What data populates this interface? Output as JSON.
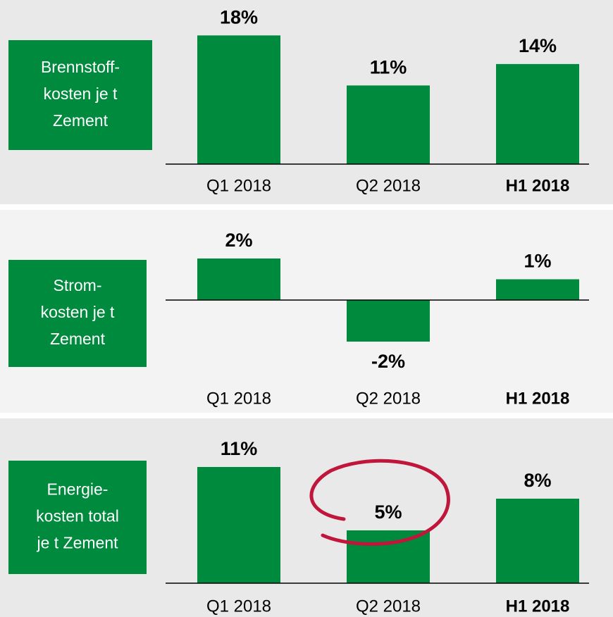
{
  "chart_data": [
    {
      "type": "bar",
      "title": [
        "Brennstoff-",
        "kosten je t",
        "Zement"
      ],
      "categories": [
        "Q1 2018",
        "Q2 2018",
        "H1 2018"
      ],
      "values": [
        18,
        11,
        14
      ],
      "value_labels": [
        "18%",
        "11%",
        "14%"
      ],
      "color": "#008a3e"
    },
    {
      "type": "bar",
      "title": [
        "Strom-",
        "kosten je t",
        "Zement"
      ],
      "categories": [
        "Q1 2018",
        "Q2 2018",
        "H1 2018"
      ],
      "values": [
        2,
        -2,
        1
      ],
      "value_labels": [
        "2%",
        "-2%",
        "1%"
      ],
      "color": "#008a3e"
    },
    {
      "type": "bar",
      "title": [
        "Energie-",
        "kosten total",
        "je t Zement"
      ],
      "categories": [
        "Q1 2018",
        "Q2 2018",
        "H1 2018"
      ],
      "values": [
        11,
        5,
        8
      ],
      "value_labels": [
        "11%",
        "5%",
        "8%"
      ],
      "color": "#008a3e"
    }
  ]
}
